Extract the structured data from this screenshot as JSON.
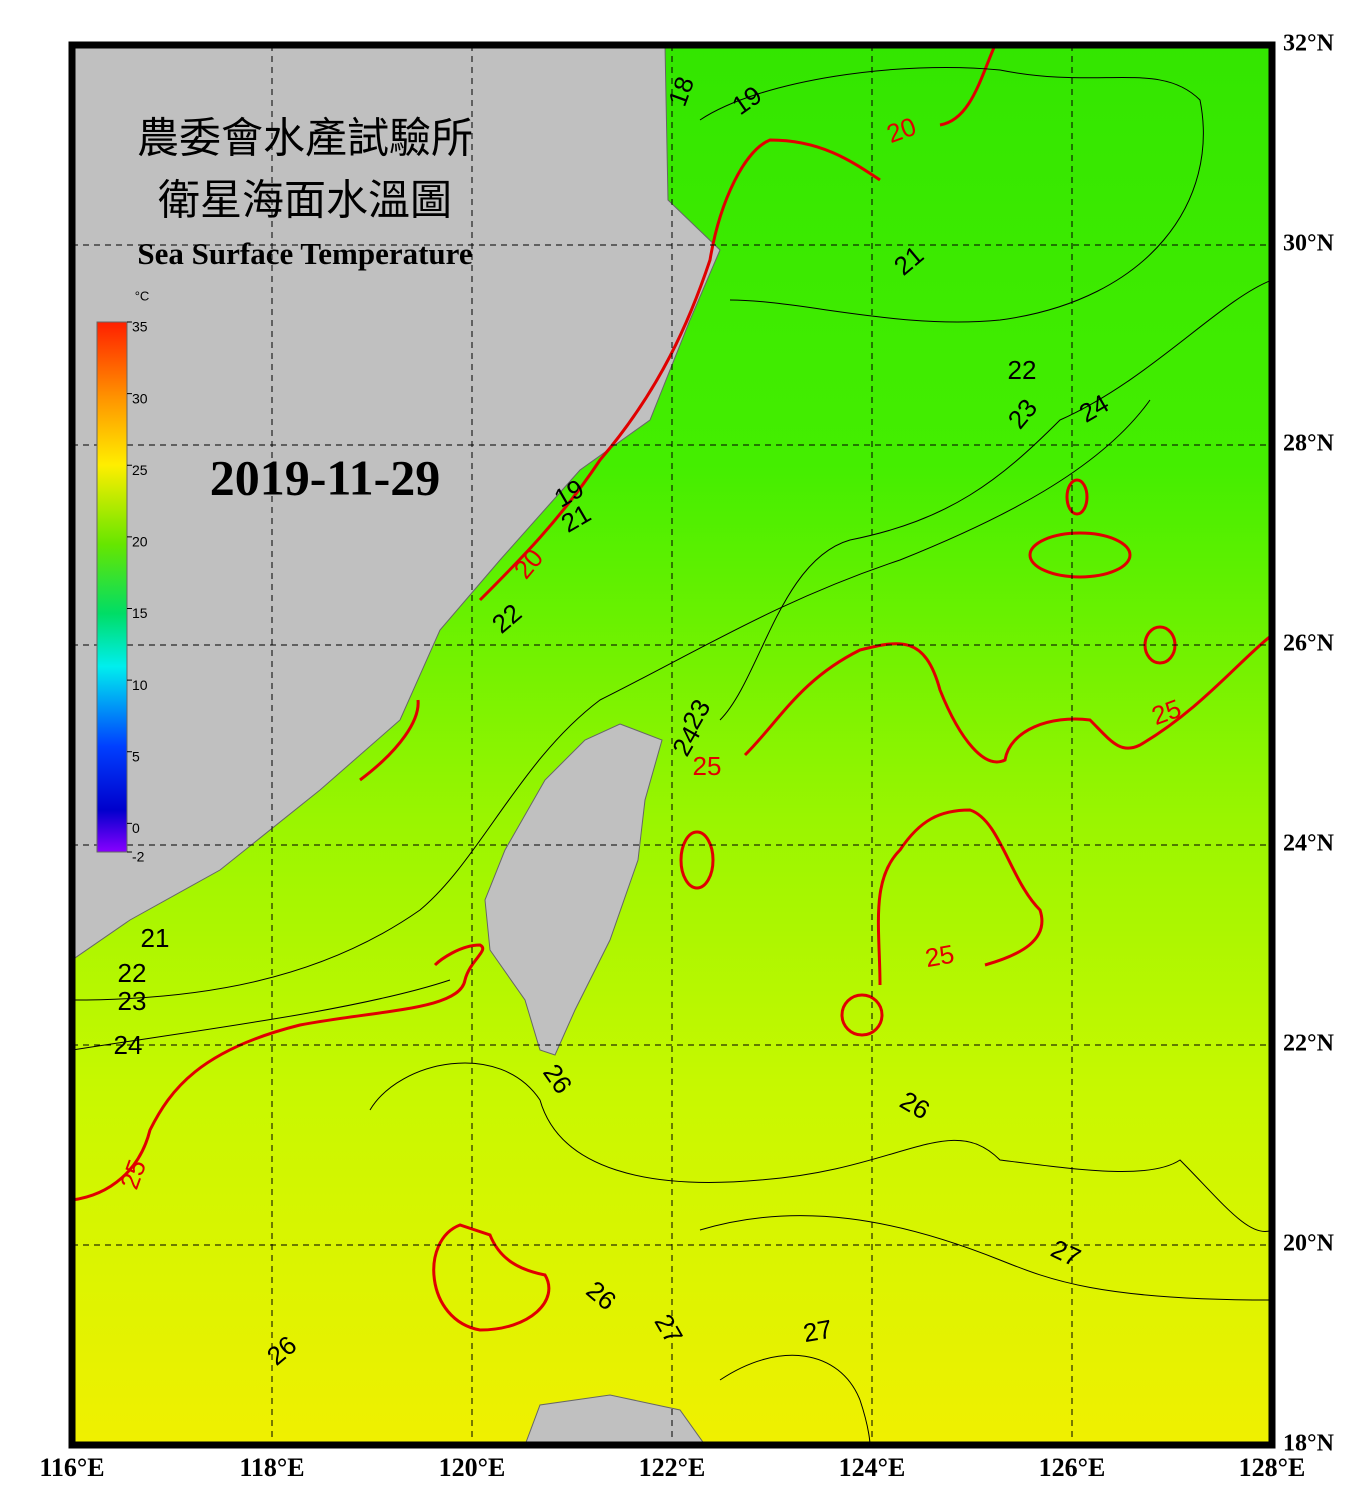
{
  "map": {
    "title_zh": "農委會水產試驗所",
    "subtitle_zh": "衛星海面水溫圖",
    "title_en": "Sea Surface Temperature",
    "date": "2019-11-29",
    "colorbar": {
      "unit": "°C",
      "range": [
        -2,
        35
      ],
      "ticks": [
        35,
        30,
        25,
        20,
        15,
        10,
        5,
        0,
        -2
      ]
    },
    "lon_range": [
      116,
      128
    ],
    "lat_range": [
      18,
      32
    ],
    "lon_ticks": [
      {
        "value": 116,
        "label": "116°E"
      },
      {
        "value": 118,
        "label": "118°E"
      },
      {
        "value": 120,
        "label": "120°E"
      },
      {
        "value": 122,
        "label": "122°E"
      },
      {
        "value": 124,
        "label": "124°E"
      },
      {
        "value": 126,
        "label": "126°E"
      },
      {
        "value": 128,
        "label": "128°E"
      }
    ],
    "lat_ticks": [
      {
        "value": 32,
        "label": "32°N"
      },
      {
        "value": 30,
        "label": "30°N"
      },
      {
        "value": 28,
        "label": "28°N"
      },
      {
        "value": 26,
        "label": "26°N"
      },
      {
        "value": 24,
        "label": "24°N"
      },
      {
        "value": 22,
        "label": "22°N"
      },
      {
        "value": 20,
        "label": "20°N"
      },
      {
        "value": 18,
        "label": "18°N"
      }
    ],
    "contour_labels": [
      "18",
      "19",
      "20",
      "21",
      "22",
      "23",
      "24",
      "19",
      "21",
      "20",
      "22",
      "23",
      "24",
      "25",
      "25",
      "25",
      "21",
      "22",
      "23",
      "24",
      "25",
      "26",
      "26",
      "27",
      "26",
      "27",
      "27",
      "26"
    ]
  }
}
